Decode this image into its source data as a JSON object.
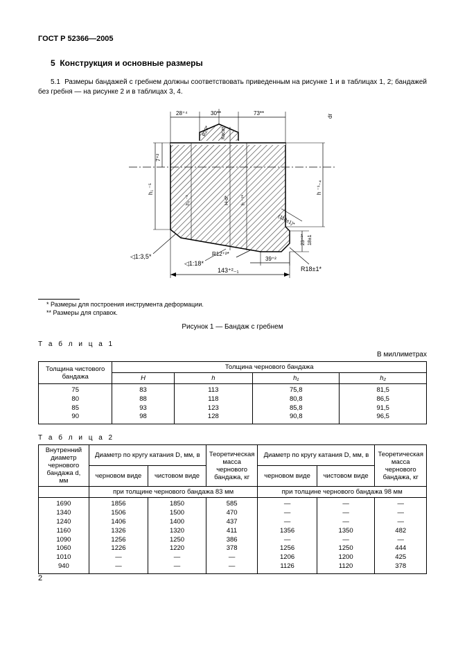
{
  "doc_id": "ГОСТ Р 52366—2005",
  "section_num": "5",
  "section_title": "Конструкция и основные размеры",
  "para_num": "5.1",
  "para_text": "Размеры бандажей с гребнем должны соответствовать приведенным на рисунке 1 и в таблицах 1, 2; бандажей без гребня — на рисунке 2 и в таблицах 3, 4.",
  "footnote1": "* Размеры для построения инструмента деформации.",
  "footnote2": "** Размеры для справок.",
  "fig_caption": "Рисунок 1 — Бандаж с гребнем",
  "units": "В миллиметрах",
  "table1_label": "Т а б л и ц а  1",
  "table2_label": "Т а б л и ц а  2",
  "page_number": "2",
  "diagram": {
    "labels": {
      "d28": "28⁺⁴",
      "d30": "30**",
      "d73": "73**",
      "d1_3_5": "◁1:3,5*",
      "r12": "R12⁺²*",
      "d1_18": "◁1:18*",
      "d143": "143⁺²₋₁",
      "d39": "39⁺²",
      "r18": "R18±1*",
      "r20": "R20*",
      "kasat": "Касат.",
      "r110": "(110±1)*",
      "d23": "23⁺¹*",
      "d18": "18±1",
      "de": "dг",
      "h7": "7⁺²",
      "h1_5": "h₁ ⁻⁵",
      "h2_3": "h₂ ⁻³",
      "hd": "H‑d*",
      "hm": "h ⁻⁵*",
      "hm1": "h ⁻¹₋₄"
    },
    "colors": {
      "hatch": "#333333",
      "line": "#000000",
      "dash": "#000000"
    }
  },
  "table1": {
    "header_main": "Толщина чистового бандажа",
    "header_group": "Толщина чернового бандажа",
    "sub_headers": [
      "H",
      "h",
      "h₁",
      "h₂"
    ],
    "rows": [
      [
        "75",
        "83",
        "113",
        "75,8",
        "81,5"
      ],
      [
        "80",
        "88",
        "118",
        "80,8",
        "86,5"
      ],
      [
        "85",
        "93",
        "123",
        "85,8",
        "91,5"
      ],
      [
        "90",
        "98",
        "128",
        "90,8",
        "96,5"
      ]
    ]
  },
  "table2": {
    "h_inner": "Внутренний диаметр чернового бандажа d, мм",
    "h_diam_group": "Диаметр по кругу катания D, мм, в",
    "h_chern": "черновом виде",
    "h_chist": "чистовом виде",
    "h_mass": "Теоретическая масса чернового бандажа, кг",
    "sub83": "при толщине чернового бандажа 83 мм",
    "sub98": "при толщине чернового бандажа 98 мм",
    "rows": [
      [
        "1690",
        "1856",
        "1850",
        "585",
        "—",
        "—",
        "—"
      ],
      [
        "1340",
        "1506",
        "1500",
        "470",
        "—",
        "—",
        "—"
      ],
      [
        "1240",
        "1406",
        "1400",
        "437",
        "—",
        "—",
        "—"
      ],
      [
        "1160",
        "1326",
        "1320",
        "411",
        "1356",
        "1350",
        "482"
      ],
      [
        "1090",
        "1256",
        "1250",
        "386",
        "—",
        "—",
        "—"
      ],
      [
        "1060",
        "1226",
        "1220",
        "378",
        "1256",
        "1250",
        "444"
      ],
      [
        "1010",
        "—",
        "—",
        "—",
        "1206",
        "1200",
        "425"
      ],
      [
        "940",
        "—",
        "—",
        "—",
        "1126",
        "1120",
        "378"
      ]
    ]
  }
}
